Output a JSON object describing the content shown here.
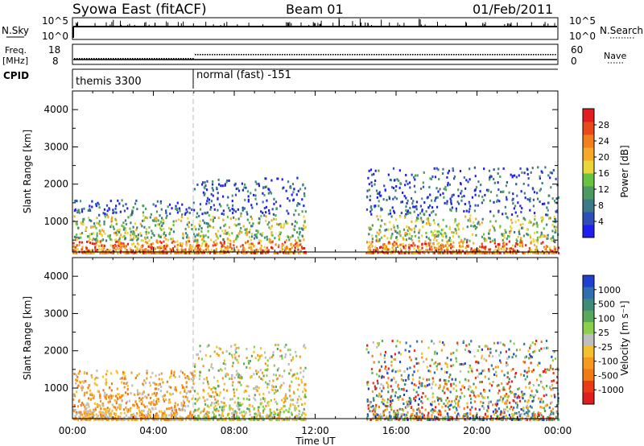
{
  "header": {
    "station": "Syowa East (fitACF)",
    "beam": "Beam 01",
    "date": "01/Feb/2011"
  },
  "nsky_panel": {
    "left_label": "N.Sky",
    "left_top": "10^5",
    "left_bottom": "10^0",
    "right_label": "N.Search",
    "right_top": "10^5",
    "right_bottom": "10^0"
  },
  "freq_panel": {
    "left_label_1": "Freq.",
    "left_label_2": "[MHz]",
    "left_top": "18",
    "left_bottom": "8",
    "right_label": "Nave",
    "right_top": "60",
    "right_bottom": "0"
  },
  "cpid_panel": {
    "label": "CPID",
    "mode_1": "themis 3300",
    "mode_2": "normal (fast) -151"
  },
  "x_axis": {
    "label": "Time UT",
    "ticks": [
      "00:00",
      "04:00",
      "08:00",
      "12:00",
      "16:00",
      "20:00",
      "00:00"
    ]
  },
  "chart_data": [
    {
      "type": "heatmap",
      "title": "Power",
      "ylabel": "Slant Range [km]",
      "xlabel": "",
      "xlim": [
        "00:00",
        "24:00"
      ],
      "ylim": [
        180,
        4500
      ],
      "y_ticks": [
        1000,
        2000,
        3000,
        4000
      ],
      "colorbar": {
        "label": "Power [dB]",
        "ticks": [
          4,
          8,
          12,
          16,
          20,
          24,
          28
        ],
        "colors": [
          "#1e1ef0",
          "#2f4fb8",
          "#3b7a86",
          "#4a9a62",
          "#68c340",
          "#e8d63a",
          "#f5a82a",
          "#f07f1e",
          "#e84a1c",
          "#e01e1e"
        ]
      },
      "scatter_regions": [
        {
          "time": [
            "00:00",
            "06:00"
          ],
          "range_km": [
            180,
            1600
          ],
          "power_db": [
            4,
            30
          ]
        },
        {
          "time": [
            "06:00",
            "11:30"
          ],
          "range_km": [
            180,
            2200
          ],
          "power_db": [
            4,
            28
          ]
        },
        {
          "time": [
            "14:30",
            "24:00"
          ],
          "range_km": [
            180,
            2500
          ],
          "power_db": [
            4,
            30
          ]
        }
      ]
    },
    {
      "type": "heatmap",
      "title": "Velocity",
      "ylabel": "Slant Range [km]",
      "xlabel": "Time UT",
      "xlim": [
        "00:00",
        "24:00"
      ],
      "ylim": [
        180,
        4500
      ],
      "y_ticks": [
        1000,
        2000,
        3000,
        4000
      ],
      "colorbar": {
        "label": "Velocity [m s⁻¹]",
        "ticks": [
          1000,
          500,
          100,
          25,
          -25,
          -100,
          -500,
          -1000
        ],
        "colors": [
          "#1e3fd0",
          "#2f6fb0",
          "#3f8a78",
          "#5aa85a",
          "#8bd04a",
          "#bfbfbf",
          "#f4c030",
          "#f59a1c",
          "#f07a14",
          "#e83c14",
          "#e01e1e"
        ]
      },
      "scatter_regions": [
        {
          "time": [
            "00:00",
            "06:00"
          ],
          "range_km": [
            180,
            1500
          ],
          "velocity_ms": [
            -500,
            500
          ]
        },
        {
          "time": [
            "06:00",
            "11:30"
          ],
          "range_km": [
            180,
            2200
          ],
          "velocity_ms": [
            -500,
            500
          ]
        },
        {
          "time": [
            "14:30",
            "24:00"
          ],
          "range_km": [
            180,
            2300
          ],
          "velocity_ms": [
            -1000,
            1000
          ]
        }
      ]
    }
  ]
}
